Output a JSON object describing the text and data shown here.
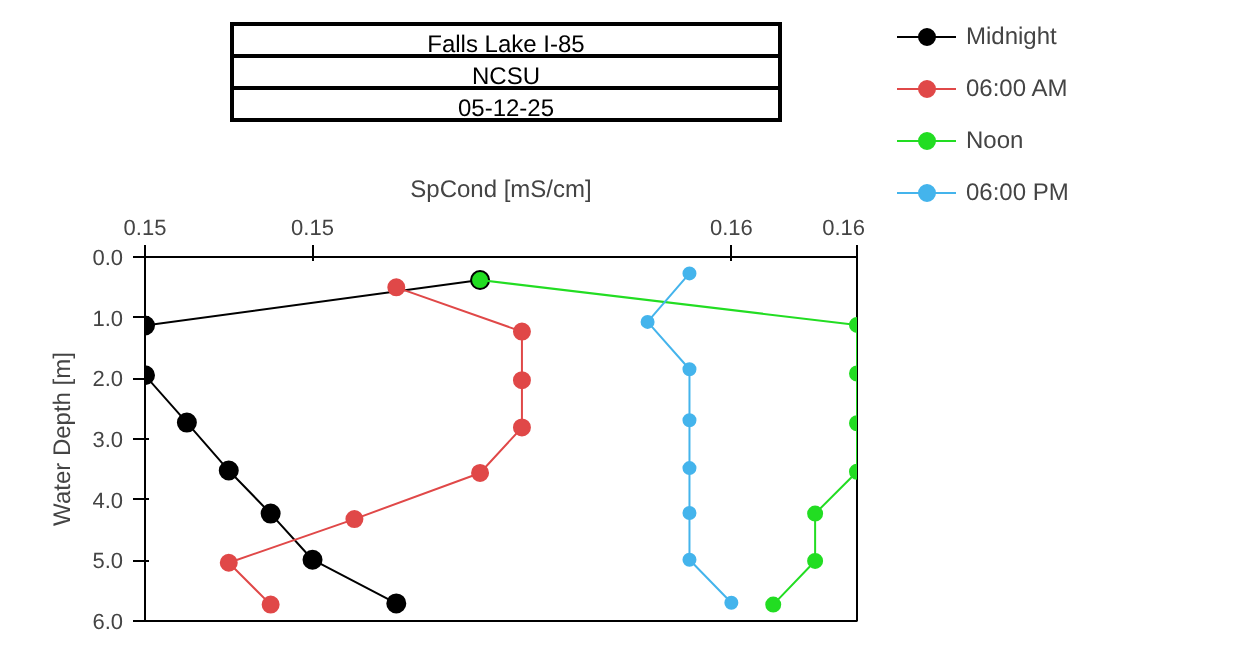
{
  "chart_data": {
    "type": "line",
    "title": "Falls Lake I-85",
    "subtitle": "NCSU",
    "annotations": [
      "05-12-25"
    ],
    "xlabel": "SpCond [mS/cm]",
    "ylabel": "Water Depth [m]",
    "xlim": [
      0.148,
      0.1565
    ],
    "xticks": [
      {
        "value": 0.148,
        "label": "0.15"
      },
      {
        "value": 0.15,
        "label": "0.15"
      },
      {
        "value": 0.155,
        "label": "0.16"
      },
      {
        "value": 0.1565,
        "label": "0.16"
      }
    ],
    "ylim": [
      6,
      0
    ],
    "yticks": [
      {
        "value": 0,
        "label": "0.0"
      },
      {
        "value": 1,
        "label": "1.0"
      },
      {
        "value": 2,
        "label": "2.0"
      },
      {
        "value": 3,
        "label": "3.0"
      },
      {
        "value": 4,
        "label": "4.0"
      },
      {
        "value": 5,
        "label": "5.0"
      },
      {
        "value": 6,
        "label": "6.0"
      }
    ],
    "grid": false,
    "legend": "top right",
    "marker": "circle",
    "line_style": "solid",
    "series": [
      {
        "name": "Midnight",
        "color": "#000000",
        "x": [
          0.152,
          0.148,
          0.148,
          0.1485,
          0.149,
          0.1495,
          0.15,
          0.151
        ],
        "values": [
          0.38,
          1.13,
          1.95,
          2.73,
          3.52,
          4.23,
          4.99,
          5.71
        ]
      },
      {
        "name": "06:00 AM",
        "color": "#e04848",
        "x": [
          0.151,
          0.1525,
          0.1525,
          0.1525,
          0.152,
          0.1505,
          0.149,
          0.1495
        ],
        "values": [
          0.5,
          1.23,
          2.03,
          2.81,
          3.56,
          4.32,
          5.04,
          5.73
        ]
      },
      {
        "name": "Noon",
        "color": "#22dd22",
        "x": [
          0.152,
          0.1565,
          0.1565,
          0.1565,
          0.1565,
          0.156,
          0.156,
          0.1555
        ],
        "values": [
          0.38,
          1.12,
          1.92,
          2.74,
          3.54,
          4.23,
          5.01,
          5.73
        ]
      },
      {
        "name": "06:00 PM",
        "color": "#44b4ec",
        "x": [
          0.1545,
          0.154,
          0.1545,
          0.1545,
          0.1545,
          0.1545,
          0.1545,
          0.155
        ],
        "values": [
          0.27,
          1.07,
          1.85,
          2.69,
          3.48,
          4.22,
          4.99,
          5.7
        ]
      }
    ]
  }
}
